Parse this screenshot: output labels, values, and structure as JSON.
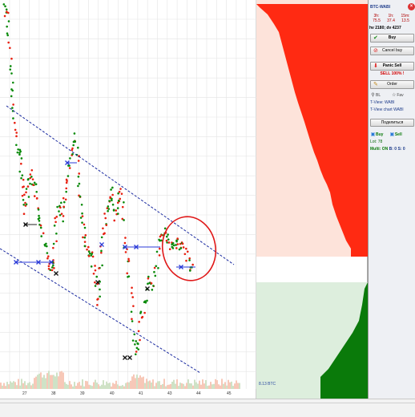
{
  "chart": {
    "x_ticks": [
      "27",
      "38",
      "39",
      "40",
      "41",
      "43",
      "44",
      "45"
    ]
  },
  "depth": {
    "total_label": "8.13 BTC"
  },
  "panel": {
    "title": "BTC-WABI",
    "stats": [
      {
        "period": "3h:",
        "value": "75.5"
      },
      {
        "period": "1h:",
        "value": "37.4"
      },
      {
        "period": "15m:",
        "value": "13.5"
      }
    ],
    "hv": "hv 2180; dv 4237",
    "buy_label": "Buy",
    "cancel_buy_label": "Cancel buy",
    "panic_sell_label": "Panic Sell",
    "sell_all_text": "SELL 100% !",
    "order_label": "Order",
    "bl_label": "BL",
    "fav_label": "Fav",
    "tview_label": "T-View: WABI",
    "tview_chart_label": "T-View chart WABI",
    "share_label": "Поделиться",
    "buy_toggle_label": "Buy",
    "sell_toggle_label": "Sell",
    "lot_text": "Lot: 78",
    "multi_text": "Multi: ON",
    "multi_counts": "B: 0 S: 0"
  },
  "colors": {
    "ask_red": "#ff2a12",
    "ask_pale": "#fde3da",
    "bid_green": "#0a7a0a",
    "bid_pale": "#ddeedd",
    "trend_line": "#1a2aa0",
    "annotation_circle": "#e01818",
    "bar_buy": "#0a8a0a",
    "bar_sell": "#e82010"
  }
}
